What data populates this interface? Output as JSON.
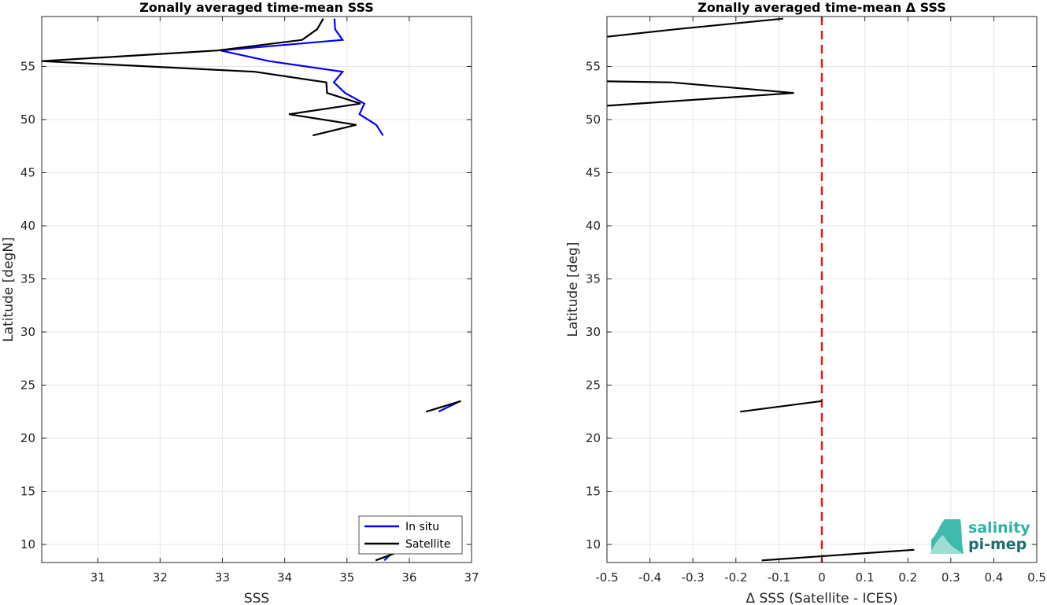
{
  "chart_data": [
    {
      "type": "line",
      "title": "Zonally averaged time-mean SSS",
      "xlabel": "SSS",
      "ylabel": "Latitude [degN]",
      "xlim": [
        30.1,
        37.0
      ],
      "ylim": [
        8.3,
        59.7
      ],
      "xticks": [
        "31",
        "32",
        "33",
        "34",
        "35",
        "36",
        "37"
      ],
      "yticks": [
        "10",
        "15",
        "20",
        "25",
        "30",
        "35",
        "40",
        "45",
        "50",
        "55"
      ],
      "grid": true,
      "legend": "bottom-right",
      "series": [
        {
          "name": "In situ",
          "color": "#0000ff",
          "segments": [
            [
              [
                34.8,
                59.5
              ],
              [
                34.81,
                58.5
              ],
              [
                34.93,
                57.5
              ],
              [
                32.97,
                56.5
              ],
              [
                33.75,
                55.5
              ],
              [
                34.93,
                54.5
              ],
              [
                34.79,
                53.5
              ],
              [
                34.97,
                52.5
              ],
              [
                35.28,
                51.5
              ],
              [
                35.2,
                50.5
              ],
              [
                35.47,
                49.5
              ],
              [
                35.58,
                48.5
              ]
            ],
            [
              [
                36.47,
                22.5
              ],
              [
                36.82,
                23.5
              ]
            ],
            [
              [
                35.6,
                8.5
              ],
              [
                35.78,
                9.5
              ]
            ]
          ]
        },
        {
          "name": "Satellite",
          "color": "#000000",
          "segments": [
            [
              [
                34.62,
                59.5
              ],
              [
                34.52,
                58.5
              ],
              [
                34.28,
                57.5
              ],
              [
                32.92,
                56.5
              ],
              [
                30.1,
                55.5
              ],
              [
                33.52,
                54.5
              ],
              [
                34.67,
                53.5
              ],
              [
                34.68,
                52.5
              ],
              [
                35.22,
                51.5
              ],
              [
                34.07,
                50.5
              ],
              [
                35.15,
                49.5
              ],
              [
                34.45,
                48.5
              ]
            ],
            [
              [
                36.27,
                22.5
              ],
              [
                36.83,
                23.5
              ]
            ],
            [
              [
                35.46,
                8.5
              ],
              [
                35.92,
                9.5
              ]
            ]
          ]
        }
      ]
    },
    {
      "type": "line",
      "title": "Zonally averaged time-mean Δ SSS",
      "xlabel": "Δ SSS (Satellite - ICES)",
      "ylabel": "Latitude [deg]",
      "xlim": [
        -0.5,
        0.5
      ],
      "ylim": [
        8.3,
        59.7
      ],
      "xticks": [
        "-0.5",
        "-0.4",
        "-0.3",
        "-0.2",
        "-0.1",
        "0",
        "0.1",
        "0.2",
        "0.3",
        "0.4",
        "0.5"
      ],
      "yticks": [
        "10",
        "15",
        "20",
        "25",
        "30",
        "35",
        "40",
        "45",
        "50",
        "55"
      ],
      "grid": true,
      "reference_line": {
        "x": 0,
        "color": "#e41a1c",
        "style": "dashed"
      },
      "series": [
        {
          "color": "#000000",
          "segments": [
            [
              [
                -0.09,
                59.5
              ],
              [
                -0.34,
                58.5
              ],
              [
                -0.5,
                57.8
              ]
            ],
            [
              [
                -0.5,
                53.6
              ],
              [
                -0.35,
                53.5
              ],
              [
                -0.065,
                52.5
              ],
              [
                -0.5,
                51.3
              ]
            ],
            [
              [
                -0.19,
                22.5
              ],
              [
                0.0,
                23.5
              ]
            ],
            [
              [
                -0.14,
                8.5
              ],
              [
                0.215,
                9.5
              ]
            ]
          ]
        }
      ]
    }
  ],
  "logo": {
    "line1": "salinity",
    "line2": "pi-mep"
  }
}
